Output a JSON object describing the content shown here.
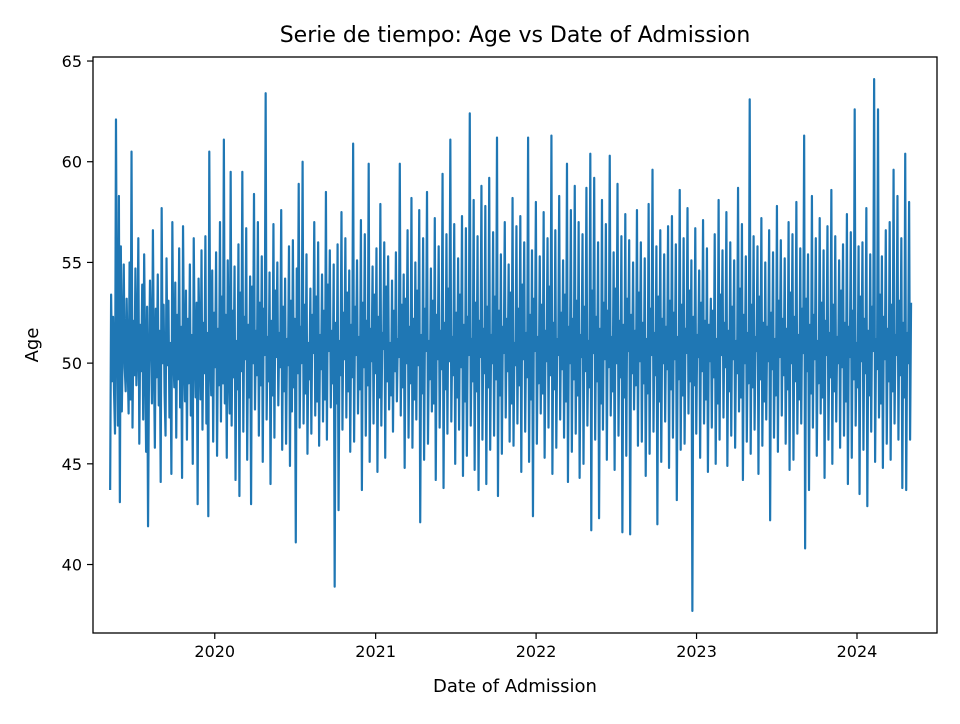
{
  "chart_data": {
    "type": "line",
    "title": "Serie de tiempo: Age vs Date of Admission",
    "xlabel": "Date of Admission",
    "ylabel": "Age",
    "x_ticks": [
      "2020",
      "2021",
      "2022",
      "2023",
      "2024"
    ],
    "y_ticks": [
      "40",
      "45",
      "50",
      "55",
      "60",
      "65"
    ],
    "xlim": [
      "2019-03-30",
      "2024-07-01"
    ],
    "ylim": [
      36.6,
      65.2
    ],
    "grid": false,
    "legend": "none",
    "line_color": "#1f77b4",
    "series": [
      {
        "x_start": "2019-05-08",
        "x_end": "2024-05-03",
        "values": [
          43.7,
          53.4,
          49.1,
          52.3,
          48.6,
          46.5,
          62.1,
          51.2,
          46.9,
          58.3,
          43.1,
          55.8,
          47.6,
          51.1,
          54.9,
          49.8,
          48.6,
          53.2,
          50.1,
          47.5,
          55.0,
          48.2,
          60.5,
          46.8,
          52.1,
          49.4,
          54.7,
          48.9,
          50.8,
          56.2,
          46.0,
          51.9,
          49.6,
          53.9,
          47.2,
          55.4,
          50.3,
          45.6,
          52.8,
          41.9,
          49.7,
          54.1,
          51.3,
          48.0,
          56.6,
          50.2,
          45.8,
          52.7,
          49.3,
          54.4,
          47.9,
          51.6,
          44.1,
          57.7,
          50.0,
          52.9,
          48.5,
          46.4,
          55.2,
          49.9,
          53.1,
          47.3,
          51.0,
          44.5,
          57.0,
          50.6,
          48.8,
          54.0,
          46.3,
          52.4,
          49.2,
          55.7,
          47.8,
          51.8,
          44.3,
          56.8,
          50.4,
          48.1,
          53.6,
          46.2,
          52.2,
          49.0,
          54.9,
          47.4,
          51.4,
          45.0,
          56.2,
          50.7,
          48.3,
          53.0,
          43.0,
          54.2,
          51.2,
          48.2,
          55.6,
          46.7,
          52.0,
          49.5,
          56.3,
          47.0,
          51.5,
          42.4,
          60.5,
          50.5,
          48.4,
          54.6,
          46.1,
          52.5,
          49.8,
          55.5,
          45.4,
          51.7,
          48.9,
          57.0,
          47.1,
          53.3,
          49.0,
          61.1,
          48.0,
          52.4,
          45.3,
          55.1,
          50.1,
          47.5,
          59.5,
          46.9,
          52.6,
          49.3,
          54.8,
          44.2,
          51.1,
          48.7,
          55.9,
          43.4,
          53.5,
          49.6,
          59.5,
          46.6,
          52.3,
          50.2,
          56.7,
          45.2,
          51.9,
          48.3,
          54.3,
          43.0,
          53.8,
          50.0,
          58.4,
          47.7,
          51.6,
          49.4,
          57.0,
          46.4,
          53.0,
          48.9,
          55.3,
          45.1,
          52.7,
          50.4,
          63.4,
          47.2,
          51.3,
          49.1,
          54.5,
          44.0,
          52.1,
          48.4,
          56.9,
          46.3,
          53.6,
          50.3,
          55.0,
          47.9,
          51.5,
          49.8,
          57.6,
          45.7,
          52.8,
          48.6,
          54.2,
          46.0,
          51.2,
          49.9,
          55.8,
          44.9,
          53.1,
          47.6,
          56.1,
          48.8,
          52.2,
          41.1,
          54.7,
          49.5,
          58.9,
          46.8,
          51.8,
          50.0,
          60.0,
          47.0,
          52.9,
          48.5,
          55.4,
          45.5,
          51.0,
          49.2,
          53.7,
          46.5,
          52.4,
          50.5,
          57.0,
          47.4,
          53.3,
          48.1,
          56.0,
          45.9,
          51.4,
          49.7,
          54.4,
          47.1,
          52.6,
          48.2,
          58.5,
          46.2,
          53.9,
          50.6,
          55.6,
          47.8,
          51.6,
          49.0,
          54.9,
          38.9,
          52.0,
          48.0,
          55.9,
          42.7,
          51.1,
          49.4,
          57.5,
          46.7,
          52.5,
          50.2,
          56.2,
          47.3,
          53.5,
          48.6,
          54.6,
          45.6,
          51.9,
          49.3,
          60.9,
          46.1,
          52.8,
          50.4,
          55.1,
          47.5,
          51.3,
          48.7,
          57.1,
          43.7,
          53.0,
          49.8,
          56.4,
          46.4,
          52.1,
          48.9,
          59.9,
          45.1,
          51.7,
          50.1,
          54.8,
          47.0,
          53.4,
          49.5,
          55.7,
          44.6,
          52.3,
          48.3,
          57.9,
          46.9,
          51.5,
          50.7,
          56.0,
          45.3,
          53.8,
          49.1,
          55.3,
          47.7,
          51.0,
          48.4,
          54.1,
          46.6,
          52.6,
          49.6,
          55.5,
          48.1,
          51.2,
          50.3,
          59.9,
          47.4,
          52.9,
          48.8,
          54.4,
          44.8,
          53.2,
          50.0,
          56.6,
          46.3,
          51.8,
          49.0,
          58.2,
          45.8,
          52.2,
          48.2,
          55.0,
          47.2,
          53.6,
          49.9,
          57.6,
          42.1,
          51.4,
          48.5,
          56.2,
          45.2,
          52.7,
          50.6,
          58.5,
          46.0,
          51.1,
          49.2,
          54.7,
          47.6,
          53.1,
          48.0,
          57.2,
          44.2,
          52.4,
          50.2,
          55.8,
          46.8,
          51.6,
          49.7,
          59.4,
          43.8,
          52.0,
          48.7,
          56.4,
          46.5,
          53.7,
          50.1,
          61.1,
          47.1,
          51.3,
          49.4,
          56.9,
          45.0,
          52.5,
          48.3,
          55.2,
          46.7,
          53.4,
          49.8,
          57.3,
          44.4,
          51.9,
          48.1,
          56.7,
          45.4,
          52.3,
          50.4,
          62.4,
          46.9,
          51.2,
          49.1,
          58.1,
          44.7,
          53.0,
          48.6,
          56.3,
          43.7,
          52.1,
          50.3,
          58.8,
          46.2,
          51.7,
          49.5,
          57.8,
          44.0,
          52.8,
          48.8,
          59.2,
          45.7,
          51.4,
          50.0,
          56.5,
          46.4,
          53.3,
          49.2,
          61.2,
          43.4,
          52.6,
          48.4,
          55.4,
          45.5,
          51.8,
          50.5,
          57.0,
          47.3,
          52.2,
          49.6,
          54.9,
          46.1,
          53.5,
          48.0,
          58.2,
          45.9,
          51.0,
          49.9,
          56.8,
          47.0,
          52.7,
          48.9,
          57.3,
          44.6,
          53.9,
          50.2,
          56.0,
          46.6,
          51.5,
          49.3,
          61.2,
          45.1,
          52.4,
          48.2,
          55.6,
          42.4,
          53.2,
          50.6,
          58.0,
          46.0,
          51.3,
          49.0,
          55.3,
          47.5,
          52.9,
          48.5,
          57.5,
          45.3,
          51.6,
          50.1,
          56.2,
          46.8,
          53.8,
          49.4,
          61.3,
          44.5,
          52.0,
          48.7,
          56.6,
          45.8,
          51.2,
          50.4,
          58.3,
          47.2,
          52.5,
          49.7,
          55.1,
          46.3,
          53.4,
          48.1,
          59.9,
          44.1,
          51.8,
          50.0,
          57.6,
          45.6,
          52.2,
          49.2,
          58.8,
          46.5,
          53.1,
          48.4,
          57.0,
          44.3,
          51.4,
          50.3,
          56.4,
          45.0,
          52.8,
          49.6,
          58.7,
          46.9,
          51.1,
          48.8,
          60.4,
          41.7,
          53.6,
          50.5,
          59.2,
          46.2,
          52.3,
          49.1,
          56.0,
          42.3,
          51.7,
          48.0,
          58.1,
          46.7,
          53.0,
          50.2,
          56.9,
          45.2,
          52.6,
          49.8,
          60.3,
          47.4,
          51.3,
          48.6,
          55.5,
          44.7,
          53.7,
          50.0,
          58.9,
          46.4,
          52.1,
          49.3,
          56.3,
          41.6,
          51.9,
          48.3,
          57.4,
          45.4,
          53.2,
          50.6,
          56.1,
          41.5,
          52.4,
          49.5,
          55.0,
          47.7,
          51.6,
          48.9,
          57.6,
          45.9,
          53.5,
          50.1,
          56.0,
          46.1,
          52.0,
          49.0,
          55.2,
          44.4,
          51.2,
          48.5,
          57.9,
          45.5,
          52.7,
          50.4,
          59.6,
          46.6,
          51.5,
          49.4,
          55.8,
          42.0,
          53.3,
          48.1,
          56.6,
          45.1,
          52.2,
          50.0,
          55.4,
          47.1,
          51.8,
          49.7,
          56.8,
          44.8,
          53.1,
          48.7,
          57.3,
          46.3,
          52.5,
          50.2,
          55.9,
          43.2,
          51.3,
          49.2,
          58.6,
          45.7,
          52.9,
          48.4,
          56.2,
          46.0,
          51.7,
          50.5,
          57.7,
          47.5,
          53.6,
          49.1,
          55.1,
          37.7,
          52.3,
          48.9,
          56.7,
          46.5,
          51.4,
          50.3,
          54.6,
          45.3,
          53.0,
          49.6,
          57.1,
          47.0,
          52.1,
          48.2,
          55.7,
          44.6,
          51.9,
          50.1,
          53.2,
          46.8,
          52.6,
          49.3,
          56.4,
          45.0,
          51.2,
          48.0,
          58.1,
          46.2,
          53.4,
          50.4,
          55.6,
          47.3,
          52.0,
          49.8,
          57.5,
          44.9,
          51.6,
          48.6,
          56.0,
          46.4,
          52.8,
          50.2,
          55.1,
          45.8,
          51.1,
          49.5,
          58.7,
          47.6,
          53.7,
          48.3,
          56.9,
          44.2,
          52.4,
          50.0,
          55.3,
          46.1,
          51.5,
          49.0,
          63.1,
          45.5,
          52.9,
          48.8,
          56.3,
          46.7,
          51.3,
          50.6,
          55.8,
          44.5,
          53.3,
          49.2,
          57.2,
          45.9,
          52.0,
          48.1,
          55.0,
          47.2,
          51.8,
          50.1,
          56.6,
          42.2,
          52.5,
          49.7,
          55.5,
          46.3,
          51.2,
          48.4,
          57.8,
          45.6,
          53.1,
          50.3,
          56.1,
          47.4,
          52.2,
          49.4,
          55.2,
          46.0,
          51.7,
          48.7,
          57.0,
          44.7,
          53.5,
          50.0,
          56.4,
          45.2,
          52.3,
          49.1,
          58.0,
          46.5,
          51.4,
          48.2,
          55.7,
          47.0,
          52.7,
          50.5,
          61.3,
          40.8,
          53.2,
          49.6,
          55.4,
          43.7,
          51.9,
          48.5,
          58.3,
          46.8,
          52.4,
          50.2,
          56.2,
          45.4,
          51.1,
          49.0,
          57.2,
          47.5,
          53.0,
          48.3,
          55.6,
          44.3,
          52.1,
          50.4,
          56.8,
          46.2,
          51.5,
          49.3,
          58.6,
          45.0,
          52.9,
          48.6,
          56.3,
          47.1,
          51.3,
          50.0,
          55.1,
          45.8,
          53.6,
          49.8,
          55.9,
          46.4,
          52.0,
          48.1,
          57.4,
          44.0,
          51.8,
          50.3,
          56.5,
          45.3,
          52.6,
          49.2,
          62.6,
          46.9,
          51.0,
          48.8,
          55.8,
          43.5,
          53.3,
          50.1,
          56.0,
          45.7,
          52.2,
          49.5,
          57.7,
          42.9,
          51.6,
          48.4,
          55.4,
          46.6,
          52.8,
          50.6,
          64.1,
          45.1,
          51.2,
          49.7,
          62.6,
          47.3,
          53.4,
          48.0,
          55.3,
          44.8,
          52.3,
          50.2,
          56.6,
          46.0,
          51.7,
          49.1,
          57.0,
          45.2,
          52.9,
          48.6,
          59.6,
          47.0,
          51.4,
          50.4,
          58.3,
          46.2,
          53.1,
          49.4,
          56.2,
          43.8,
          52.0,
          48.3,
          60.4,
          43.7,
          51.5,
          50.0,
          58.0,
          46.2,
          53.0
        ]
      }
    ]
  }
}
